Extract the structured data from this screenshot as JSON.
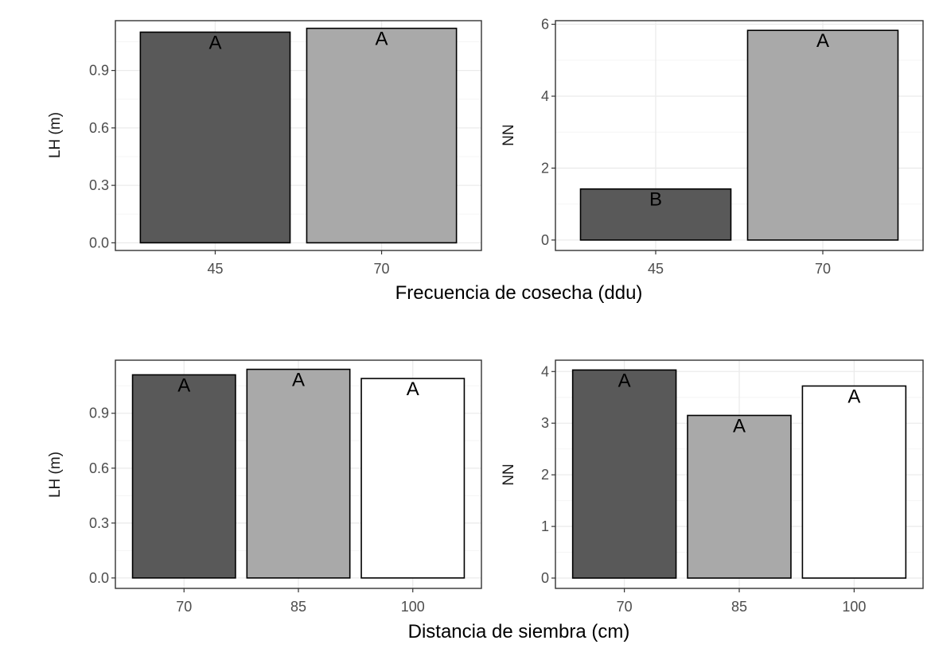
{
  "group_titles": {
    "top": "Frecuencia de cosecha (ddu)",
    "bottom": "Distancia de siembra (cm)"
  },
  "colors": {
    "dark": "#595959",
    "mid": "#a9a9a9",
    "light": "#ffffff",
    "grid_major": "#ebebeb",
    "grid_minor": "#f5f5f5",
    "panel_border": "#333333"
  },
  "chart_data": [
    {
      "type": "bar",
      "panel": "top-left",
      "ylabel": "LH (m)",
      "categories": [
        "45",
        "70"
      ],
      "values": [
        1.1,
        1.12
      ],
      "labels": [
        "A",
        "A"
      ],
      "fills": [
        "dark",
        "mid"
      ],
      "ylim": [
        -0.04,
        1.16
      ],
      "yticks": [
        0.0,
        0.3,
        0.6,
        0.9
      ],
      "ytick_labels": [
        "0.0",
        "0.3",
        "0.6",
        "0.9"
      ],
      "grid": true
    },
    {
      "type": "bar",
      "panel": "top-right",
      "ylabel": "NN",
      "categories": [
        "45",
        "70"
      ],
      "values": [
        1.42,
        5.83
      ],
      "labels": [
        "B",
        "A"
      ],
      "fills": [
        "dark",
        "mid"
      ],
      "ylim": [
        -0.29,
        6.1
      ],
      "yticks": [
        0,
        2,
        4,
        6
      ],
      "ytick_labels": [
        "0",
        "2",
        "4",
        "6"
      ],
      "grid": true
    },
    {
      "type": "bar",
      "panel": "bottom-left",
      "ylabel": "LH (m)",
      "categories": [
        "70",
        "85",
        "100"
      ],
      "values": [
        1.11,
        1.14,
        1.09
      ],
      "labels": [
        "A",
        "A",
        "A"
      ],
      "fills": [
        "dark",
        "mid",
        "light"
      ],
      "ylim": [
        -0.057,
        1.19
      ],
      "yticks": [
        0.0,
        0.3,
        0.6,
        0.9
      ],
      "ytick_labels": [
        "0.0",
        "0.3",
        "0.6",
        "0.9"
      ],
      "grid": true
    },
    {
      "type": "bar",
      "panel": "bottom-right",
      "ylabel": "NN",
      "categories": [
        "70",
        "85",
        "100"
      ],
      "values": [
        4.03,
        3.15,
        3.72
      ],
      "labels": [
        "A",
        "A",
        "A"
      ],
      "fills": [
        "dark",
        "mid",
        "light"
      ],
      "ylim": [
        -0.2,
        4.22
      ],
      "yticks": [
        0,
        1,
        2,
        3,
        4
      ],
      "ytick_labels": [
        "0",
        "1",
        "2",
        "3",
        "4"
      ],
      "grid": true
    }
  ]
}
